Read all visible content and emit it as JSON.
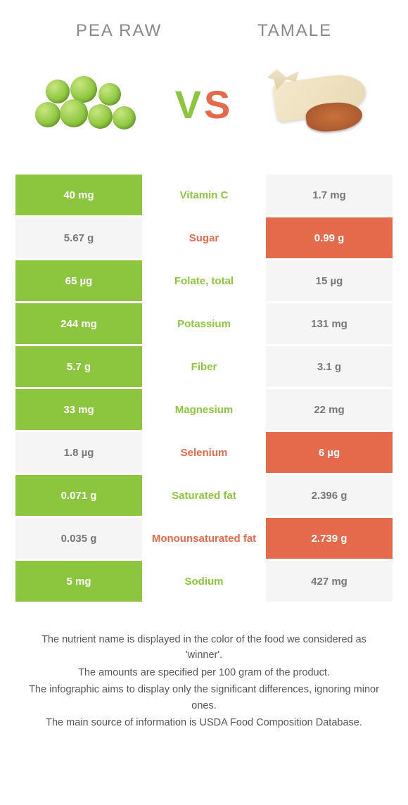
{
  "header": {
    "left_title": "Pea raw",
    "right_title": "Tamale"
  },
  "vs": {
    "v": "V",
    "s": "S"
  },
  "colors": {
    "green": "#8cc63e",
    "orange": "#e56a4b",
    "light": "#f5f5f5",
    "text_light": "#777"
  },
  "rows": [
    {
      "nutrient": "Vitamin C",
      "left": "40 mg",
      "right": "1.7 mg",
      "winner": "left"
    },
    {
      "nutrient": "Sugar",
      "left": "5.67 g",
      "right": "0.99 g",
      "winner": "right"
    },
    {
      "nutrient": "Folate, total",
      "left": "65 µg",
      "right": "15 µg",
      "winner": "left"
    },
    {
      "nutrient": "Potassium",
      "left": "244 mg",
      "right": "131 mg",
      "winner": "left"
    },
    {
      "nutrient": "Fiber",
      "left": "5.7 g",
      "right": "3.1 g",
      "winner": "left"
    },
    {
      "nutrient": "Magnesium",
      "left": "33 mg",
      "right": "22 mg",
      "winner": "left"
    },
    {
      "nutrient": "Selenium",
      "left": "1.8 µg",
      "right": "6 µg",
      "winner": "right"
    },
    {
      "nutrient": "Saturated fat",
      "left": "0.071 g",
      "right": "2.396 g",
      "winner": "left"
    },
    {
      "nutrient": "Monounsaturated fat",
      "left": "0.035 g",
      "right": "2.739 g",
      "winner": "right"
    },
    {
      "nutrient": "Sodium",
      "left": "5 mg",
      "right": "427 mg",
      "winner": "left"
    }
  ],
  "notes": [
    "The nutrient name is displayed in the color of the food we considered as 'winner'.",
    "The amounts are specified per 100 gram of the product.",
    "The infographic aims to display only the significant differences, ignoring minor ones.",
    "The main source of information is USDA Food Composition Database."
  ]
}
